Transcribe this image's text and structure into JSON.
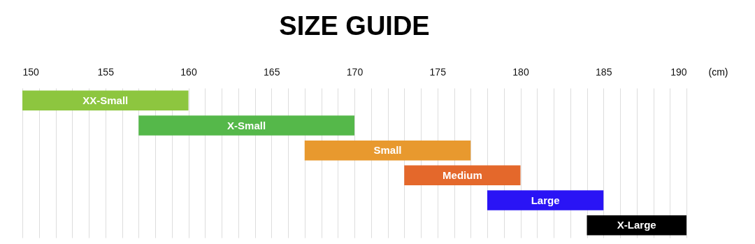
{
  "chart_data": {
    "type": "bar",
    "orientation": "horizontal",
    "title": "SIZE GUIDE",
    "xlabel": "(cm)",
    "categories": [
      "XX-Small",
      "X-Small",
      "Small",
      "Medium",
      "Large",
      "X-Large"
    ],
    "base": [
      150,
      157,
      167,
      173,
      178,
      184
    ],
    "values": [
      10,
      13,
      10,
      7,
      7,
      6
    ],
    "colors": [
      "#8dc63f",
      "#55b84a",
      "#e8992e",
      "#e4682b",
      "#2a14f5",
      "#000000"
    ],
    "xlim": [
      150,
      190
    ],
    "xticks": [
      150,
      {
        "value": 151,
        "label": null
      },
      {
        "value": 152,
        "label": null
      },
      {
        "value": 153,
        "label": null
      },
      {
        "value": 154,
        "label": null
      },
      155,
      {
        "value": 156,
        "label": null
      },
      {
        "value": 157,
        "label": null
      },
      {
        "value": 158,
        "label": null
      },
      {
        "value": 159,
        "label": null
      },
      160,
      {
        "value": 161,
        "label": null
      },
      {
        "value": 162,
        "label": null
      },
      {
        "value": 163,
        "label": null
      },
      {
        "value": 164,
        "label": null
      },
      165,
      {
        "value": 166,
        "label": null
      },
      {
        "value": 167,
        "label": null
      },
      {
        "value": 168,
        "label": null
      },
      {
        "value": 169,
        "label": null
      },
      170,
      {
        "value": 171,
        "label": null
      },
      {
        "value": 172,
        "label": null
      },
      {
        "value": 173,
        "label": null
      },
      {
        "value": 174,
        "label": null
      },
      175,
      {
        "value": 176,
        "label": null
      },
      {
        "value": 177,
        "label": null
      },
      {
        "value": 178,
        "label": null
      },
      {
        "value": 179,
        "label": null
      },
      180,
      {
        "value": 181,
        "label": null
      },
      {
        "value": 182,
        "label": null
      },
      {
        "value": 183,
        "label": null
      },
      {
        "value": 184,
        "label": null
      },
      185,
      {
        "value": 186,
        "label": null
      },
      {
        "value": 187,
        "label": null
      },
      {
        "value": 188,
        "label": null
      },
      {
        "value": 189,
        "label": null
      },
      190
    ],
    "grid": "x",
    "tick_labels": "x"
  }
}
